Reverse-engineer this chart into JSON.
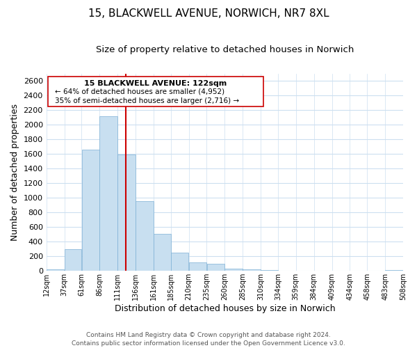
{
  "title_line1": "15, BLACKWELL AVENUE, NORWICH, NR7 8XL",
  "title_line2": "Size of property relative to detached houses in Norwich",
  "xlabel": "Distribution of detached houses by size in Norwich",
  "ylabel": "Number of detached properties",
  "bar_left_edges": [
    12,
    37,
    61,
    86,
    111,
    136,
    161,
    185,
    210,
    235,
    260,
    285,
    310,
    334,
    359,
    384,
    409,
    434,
    458,
    483
  ],
  "bar_heights": [
    20,
    295,
    1660,
    2120,
    1590,
    955,
    505,
    250,
    120,
    95,
    35,
    20,
    8,
    3,
    2,
    1,
    1,
    0,
    0,
    15
  ],
  "bar_widths": [
    25,
    24,
    25,
    25,
    25,
    25,
    24,
    25,
    25,
    25,
    25,
    25,
    24,
    25,
    25,
    25,
    25,
    24,
    25,
    25
  ],
  "bar_color": "#c8dff0",
  "bar_edge_color": "#7db0d5",
  "tick_labels": [
    "12sqm",
    "37sqm",
    "61sqm",
    "86sqm",
    "111sqm",
    "136sqm",
    "161sqm",
    "185sqm",
    "210sqm",
    "235sqm",
    "260sqm",
    "285sqm",
    "310sqm",
    "334sqm",
    "359sqm",
    "384sqm",
    "409sqm",
    "434sqm",
    "458sqm",
    "483sqm",
    "508sqm"
  ],
  "tick_positions": [
    12,
    37,
    61,
    86,
    111,
    136,
    161,
    185,
    210,
    235,
    260,
    285,
    310,
    334,
    359,
    384,
    409,
    434,
    458,
    483,
    508
  ],
  "ylim": [
    0,
    2700
  ],
  "xlim": [
    12,
    508
  ],
  "property_line_x": 122,
  "property_line_color": "#cc0000",
  "annotation_text_line1": "15 BLACKWELL AVENUE: 122sqm",
  "annotation_text_line2": "← 64% of detached houses are smaller (4,952)",
  "annotation_text_line3": "35% of semi-detached houses are larger (2,716) →",
  "footer_line1": "Contains HM Land Registry data © Crown copyright and database right 2024.",
  "footer_line2": "Contains public sector information licensed under the Open Government Licence v3.0.",
  "background_color": "#ffffff",
  "grid_color": "#ccdff0",
  "title_fontsize": 11,
  "subtitle_fontsize": 9.5,
  "axis_label_fontsize": 9,
  "tick_fontsize": 7,
  "annotation_fontsize_title": 8,
  "annotation_fontsize_body": 7.5,
  "footer_fontsize": 6.5
}
